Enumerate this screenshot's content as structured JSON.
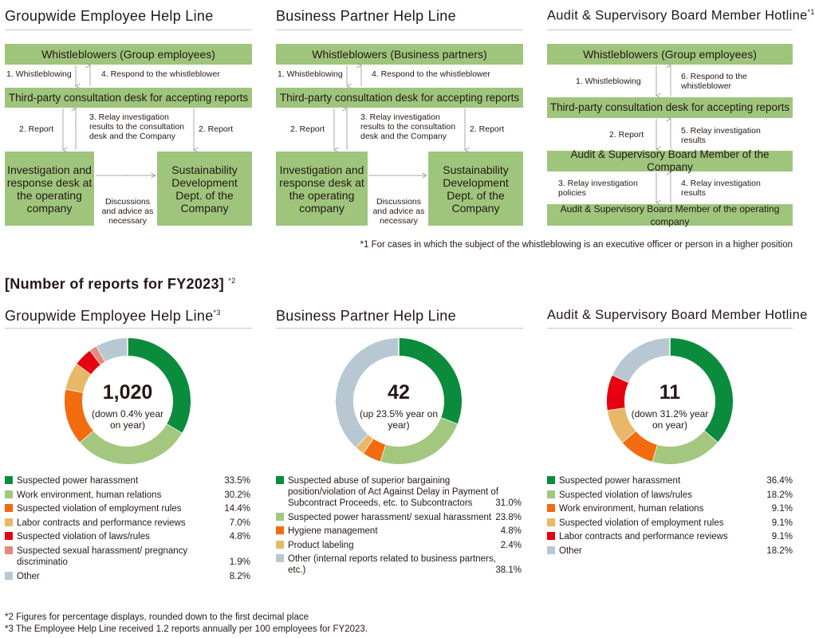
{
  "flows": [
    {
      "title": "Groupwide Employee Help Line",
      "title_sup": "",
      "top_box": "Whistleblowers (Group employees)",
      "mid_box": "Third-party consultation desk for accepting reports",
      "left_box": "Investigation and response desk at the operating company",
      "right_box": "Sustainability Development Dept. of the Company",
      "labels": {
        "a": "1. Whistleblowing",
        "b": "4. Respond to the whistleblower",
        "c": "2. Report",
        "d": "3. Relay investigation results to the consultation desk and the Company",
        "e": "2. Report",
        "f": "Discussions and advice as necessary"
      }
    },
    {
      "title": "Business Partner Help Line",
      "title_sup": "",
      "top_box": "Whistleblowers (Business partners)",
      "mid_box": "Third-party consultation desk for accepting reports",
      "left_box": "Investigation and response desk at the operating company",
      "right_box": "Sustainability Development Dept. of the Company",
      "labels": {
        "a": "1. Whistleblowing",
        "b": "4. Respond to the whistleblower",
        "c": "2. Report",
        "d": "3. Relay investigation results to the consultation desk and the Company",
        "e": "2. Report",
        "f": "Discussions and advice as necessary"
      }
    }
  ],
  "audit": {
    "title": "Audit & Supervisory Board Member Hotline",
    "title_sup": "*1",
    "box1": "Whistleblowers (Group employees)",
    "box2": "Third-party consultation desk for accepting reports",
    "box3": "Audit & Supervisory Board Member of the Company",
    "box4": "Audit & Supervisory Board Member of the operating company",
    "l1": "1. Whistleblowing",
    "l6": "6. Respond to the whistleblower",
    "l2": "2. Report",
    "l5": "5. Relay investigation results",
    "l3": "3. Relay investigation policies",
    "l4": "4. Relay investigation results"
  },
  "footnote1": "*1 For cases in which the subject of the whistleblowing is an executive officer or person in a higher position",
  "section_title": "[Number of reports for FY2023]",
  "section_sup": "*2",
  "colors": {
    "box": "#9fc57d",
    "arrow": "#a8a8a8",
    "rule": "#c8c8c8"
  },
  "chart_data": [
    {
      "type": "pie",
      "title": "Groupwide Employee Help Line",
      "title_sup": "*3",
      "total": "1,020",
      "total_note": "(down 0.4% year on year)",
      "categories": [
        "Suspected power harassment",
        "Work environment, human relations",
        "Suspected violation of employment rules",
        "Labor contracts and performance reviews",
        "Suspected violation of laws/rules",
        "Suspected sexual harassment/ pregnancy discriminatio",
        "Other"
      ],
      "values": [
        33.5,
        30.2,
        14.4,
        7.0,
        4.8,
        1.9,
        8.2
      ],
      "labels": [
        "33.5%",
        "30.2%",
        "14.4%",
        "7.0%",
        "4.8%",
        "1.9%",
        "8.2%"
      ],
      "colors": [
        "#0a8c3c",
        "#a3c77f",
        "#f26b0f",
        "#e8b869",
        "#e60012",
        "#e5897e",
        "#b8c8d2"
      ]
    },
    {
      "type": "pie",
      "title": "Business Partner Help Line",
      "title_sup": "",
      "total": "42",
      "total_note": "(up 23.5% year on year)",
      "categories": [
        "Suspected abuse of superior bargaining position/violation of Act Against Delay in Payment of Subcontract Proceeds, etc. to Subcontractors",
        "Suspected power harassment/ sexual harassment",
        "Hygiene management",
        "Product labeling",
        "Other (internal reports related to business partners, etc.)"
      ],
      "values": [
        31.0,
        23.8,
        4.8,
        2.4,
        38.1
      ],
      "labels": [
        "31.0%",
        "23.8%",
        "4.8%",
        "2.4%",
        "38.1%"
      ],
      "colors": [
        "#0a8c3c",
        "#a3c77f",
        "#f26b0f",
        "#e8b869",
        "#b8c8d2"
      ]
    },
    {
      "type": "pie",
      "title": "Audit & Supervisory Board Member Hotline",
      "title_sup": "",
      "total": "11",
      "total_note": "(down 31.2% year on year)",
      "categories": [
        "Suspected power harassment",
        "Suspected violation of laws/rules",
        "Work environment, human relations",
        "Suspected violation of employment rules",
        "Labor contracts and performance reviews",
        "Other"
      ],
      "values": [
        36.4,
        18.2,
        9.1,
        9.1,
        9.1,
        18.2
      ],
      "labels": [
        "36.4%",
        "18.2%",
        "9.1%",
        "9.1%",
        "9.1%",
        "18.2%"
      ],
      "colors": [
        "#0a8c3c",
        "#a3c77f",
        "#f26b0f",
        "#e8b869",
        "#e60012",
        "#b8c8d2"
      ]
    }
  ],
  "footnote2": "*2 Figures for percentage displays, rounded down to the first decimal place",
  "footnote3": "*3 The Employee Help Line received 1.2 reports annually per 100 employees for FY2023."
}
